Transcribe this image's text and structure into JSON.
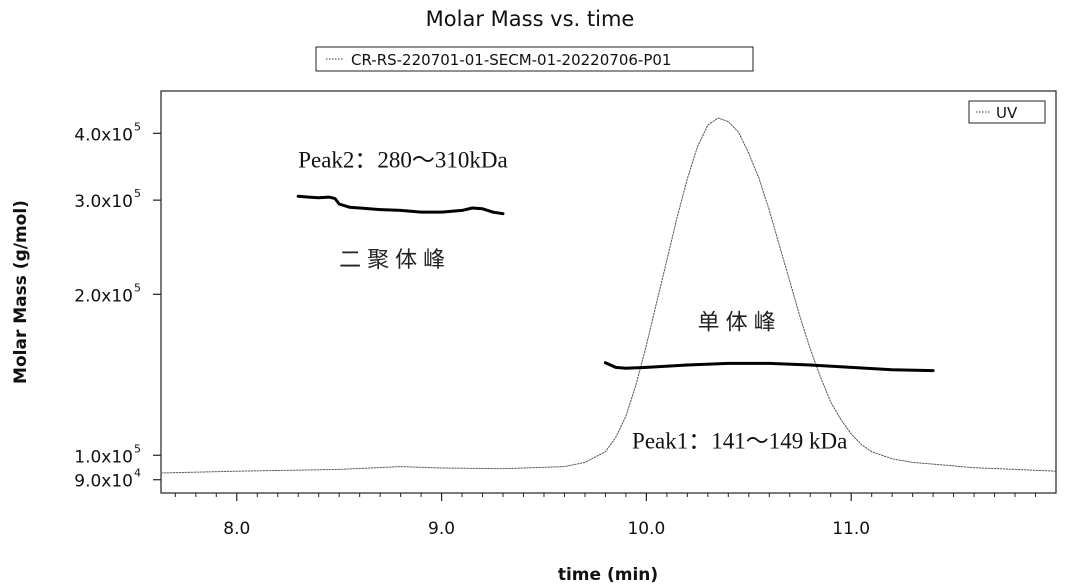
{
  "chart_data": {
    "type": "line",
    "title": "Molar Mass vs. time",
    "legend_top": "CR-RS-220701-01-SECM-01-20220706-P01",
    "legend_inner": "UV",
    "xlabel": "time (min)",
    "ylabel": "Molar Mass (g/mol)",
    "xlim": [
      7.63,
      12.0
    ],
    "y_scale": "log",
    "ylim": [
      85000,
      480000
    ],
    "x_ticks": [
      {
        "value": 8.0,
        "label": "8.0"
      },
      {
        "value": 9.0,
        "label": "9.0"
      },
      {
        "value": 10.0,
        "label": "10.0"
      },
      {
        "value": 11.0,
        "label": "11.0"
      }
    ],
    "y_ticks": [
      {
        "value": 90000,
        "base": "9.0x10",
        "exp": "4"
      },
      {
        "value": 100000,
        "base": "1.0x10",
        "exp": "5"
      },
      {
        "value": 200000,
        "base": "2.0x10",
        "exp": "5"
      },
      {
        "value": 300000,
        "base": "3.0x10",
        "exp": "5"
      },
      {
        "value": 400000,
        "base": "4.0x10",
        "exp": "5"
      }
    ],
    "series": [
      {
        "name": "UV",
        "style": "dotted",
        "units": "relative (0–1)",
        "x": [
          7.63,
          8.0,
          8.5,
          8.8,
          9.0,
          9.3,
          9.6,
          9.7,
          9.8,
          9.85,
          9.9,
          9.95,
          10.0,
          10.05,
          10.1,
          10.15,
          10.2,
          10.25,
          10.3,
          10.35,
          10.4,
          10.45,
          10.5,
          10.55,
          10.6,
          10.65,
          10.7,
          10.75,
          10.8,
          10.85,
          10.9,
          10.95,
          11.0,
          11.05,
          11.1,
          11.2,
          11.3,
          11.4,
          11.5,
          11.6,
          11.8,
          12.0
        ],
        "y": [
          0.0,
          0.005,
          0.01,
          0.018,
          0.014,
          0.012,
          0.018,
          0.03,
          0.06,
          0.1,
          0.16,
          0.25,
          0.36,
          0.48,
          0.6,
          0.72,
          0.83,
          0.92,
          0.98,
          1.0,
          0.99,
          0.96,
          0.9,
          0.83,
          0.74,
          0.64,
          0.54,
          0.44,
          0.35,
          0.27,
          0.2,
          0.15,
          0.11,
          0.08,
          0.06,
          0.04,
          0.03,
          0.025,
          0.02,
          0.015,
          0.01,
          0.005
        ]
      },
      {
        "name": "Peak2 molar mass",
        "style": "solid",
        "x": [
          8.3,
          8.35,
          8.4,
          8.45,
          8.48,
          8.5,
          8.55,
          8.6,
          8.7,
          8.8,
          8.9,
          9.0,
          9.1,
          9.15,
          9.2,
          9.25,
          9.3
        ],
        "y": [
          305000,
          304000,
          303000,
          304000,
          302000,
          295000,
          291000,
          290000,
          288000,
          287000,
          285000,
          285000,
          287000,
          290000,
          289000,
          285000,
          283000
        ]
      },
      {
        "name": "Peak1 molar mass",
        "style": "solid",
        "x": [
          9.8,
          9.85,
          9.9,
          10.0,
          10.2,
          10.4,
          10.6,
          10.8,
          11.0,
          11.2,
          11.4
        ],
        "y": [
          149000,
          146000,
          145500,
          146000,
          147500,
          148500,
          148500,
          147500,
          146000,
          144500,
          144000
        ]
      }
    ],
    "annotations": [
      {
        "text": "Peak2：280～310kDa",
        "x": 8.3,
        "y": 345000,
        "style": "serif"
      },
      {
        "text": "二聚体峰",
        "x": 8.5,
        "y": 225000,
        "style": "cjk"
      },
      {
        "text": "单体峰",
        "x": 10.25,
        "y": 172000,
        "style": "cjk"
      },
      {
        "text": "Peak1：141～149 kDa",
        "x": 9.93,
        "y": 103000,
        "style": "serif"
      }
    ]
  }
}
